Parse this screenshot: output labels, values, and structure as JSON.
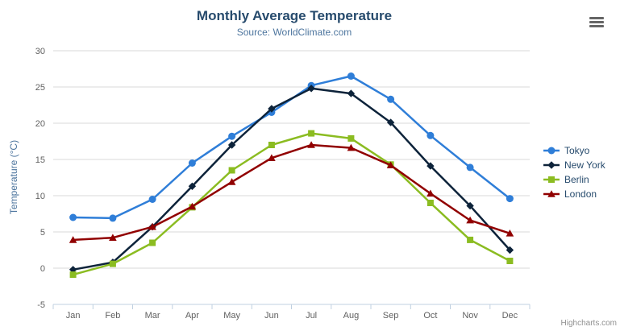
{
  "chart_data": {
    "type": "line",
    "title": "Monthly Average Temperature",
    "subtitle": "Source: WorldClimate.com",
    "categories": [
      "Jan",
      "Feb",
      "Mar",
      "Apr",
      "May",
      "Jun",
      "Jul",
      "Aug",
      "Sep",
      "Oct",
      "Nov",
      "Dec"
    ],
    "series": [
      {
        "name": "Tokyo",
        "color": "#2f7ed8",
        "marker": "circle",
        "values": [
          7.0,
          6.9,
          9.5,
          14.5,
          18.2,
          21.5,
          25.2,
          26.5,
          23.3,
          18.3,
          13.9,
          9.6
        ]
      },
      {
        "name": "New York",
        "color": "#0d233a",
        "marker": "diamond",
        "values": [
          -0.2,
          0.8,
          5.7,
          11.3,
          17.0,
          22.0,
          24.8,
          24.1,
          20.1,
          14.1,
          8.6,
          2.5
        ]
      },
      {
        "name": "Berlin",
        "color": "#8bbc21",
        "marker": "square",
        "values": [
          -0.9,
          0.6,
          3.5,
          8.4,
          13.5,
          17.0,
          18.6,
          17.9,
          14.3,
          9.0,
          3.9,
          1.0
        ]
      },
      {
        "name": "London",
        "color": "#910000",
        "marker": "triangle",
        "values": [
          3.9,
          4.2,
          5.7,
          8.5,
          11.9,
          15.2,
          17.0,
          16.6,
          14.2,
          10.3,
          6.6,
          4.8
        ]
      }
    ],
    "xlabel": "",
    "ylabel": "Temperature (°C)",
    "ylim": [
      -5,
      30
    ],
    "ytick_step": 5,
    "grid": true,
    "legend_position": "right",
    "grid_color": "#d8d8d8",
    "axis_line_color": "#c0d0e0"
  },
  "icons": {
    "context_menu": "hamburger-icon"
  },
  "credits": {
    "label": "Highcharts.com"
  }
}
